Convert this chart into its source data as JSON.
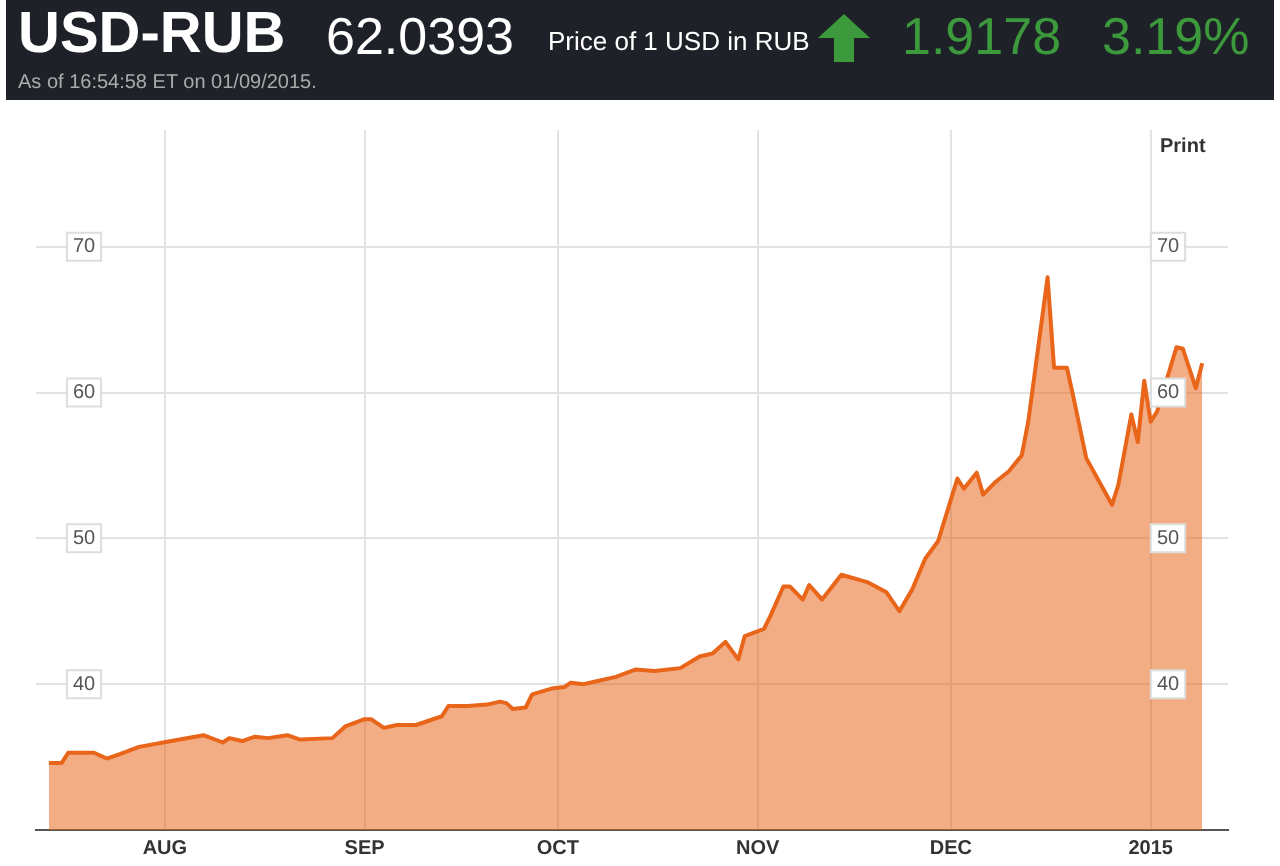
{
  "chart_data": {
    "type": "area",
    "title": "USD-RUB",
    "subtitle": "As of 16:54:58 ET on 01/09/2015.",
    "annotations": [
      "62.0393",
      "Price of 1 USD in RUB",
      "1.9178",
      "3.19%",
      "Print"
    ],
    "x": [
      "2014-07-14",
      "2014-07-16",
      "2014-07-17",
      "2014-07-21",
      "2014-07-23",
      "2014-07-25",
      "2014-07-28",
      "2014-08-02",
      "2014-08-07",
      "2014-08-10",
      "2014-08-11",
      "2014-08-13",
      "2014-08-15",
      "2014-08-17",
      "2014-08-20",
      "2014-08-22",
      "2014-08-27",
      "2014-08-29",
      "2014-09-01",
      "2014-09-02",
      "2014-09-04",
      "2014-09-06",
      "2014-09-09",
      "2014-09-13",
      "2014-09-14",
      "2014-09-17",
      "2014-09-20",
      "2014-09-22",
      "2014-09-23",
      "2014-09-24",
      "2014-09-26",
      "2014-09-27",
      "2014-09-30",
      "2014-10-02",
      "2014-10-03",
      "2014-10-05",
      "2014-10-07",
      "2014-10-10",
      "2014-10-13",
      "2014-10-16",
      "2014-10-20",
      "2014-10-23",
      "2014-10-25",
      "2014-10-27",
      "2014-10-29",
      "2014-10-30",
      "2014-11-02",
      "2014-11-03",
      "2014-11-05",
      "2014-11-06",
      "2014-11-08",
      "2014-11-09",
      "2014-11-11",
      "2014-11-14",
      "2014-11-18",
      "2014-11-21",
      "2014-11-23",
      "2014-11-25",
      "2014-11-27",
      "2014-11-29",
      "2014-12-02",
      "2014-12-03",
      "2014-12-05",
      "2014-12-06",
      "2014-12-08",
      "2014-12-10",
      "2014-12-12",
      "2014-12-13",
      "2014-12-16",
      "2014-12-17",
      "2014-12-19",
      "2014-12-20",
      "2014-12-22",
      "2014-12-24",
      "2014-12-26",
      "2014-12-27",
      "2014-12-29",
      "2014-12-30",
      "2014-12-31",
      "2015-01-01",
      "2015-01-02",
      "2015-01-05",
      "2015-01-06",
      "2015-01-08",
      "2015-01-09"
    ],
    "series": [
      {
        "color": "#e8651a",
        "values": [
          34.6,
          34.6,
          35.3,
          35.3,
          34.9,
          35.2,
          35.7,
          36.1,
          36.5,
          36.0,
          36.3,
          36.1,
          36.4,
          36.3,
          36.5,
          36.2,
          36.3,
          37.1,
          37.6,
          37.6,
          37.0,
          37.2,
          37.2,
          37.8,
          38.5,
          38.5,
          38.6,
          38.8,
          38.7,
          38.3,
          38.4,
          39.3,
          39.7,
          39.8,
          40.1,
          40.0,
          40.2,
          40.5,
          41.0,
          40.9,
          41.1,
          41.9,
          42.1,
          42.9,
          41.7,
          43.3,
          43.8,
          44.7,
          46.7,
          46.7,
          45.8,
          46.8,
          45.8,
          47.5,
          47.0,
          46.3,
          45.0,
          46.5,
          48.6,
          49.8,
          54.1,
          53.4,
          54.5,
          53.0,
          53.9,
          54.6,
          55.7,
          58.0,
          67.9,
          61.7,
          61.7,
          59.7,
          55.5,
          53.9,
          52.3,
          53.7,
          58.5,
          56.6,
          60.8,
          58.0,
          58.7,
          63.1,
          63.0,
          60.3,
          62.0
        ]
      }
    ],
    "xlim": [
      "2014-07-12",
      "2015-01-13"
    ],
    "xticks": [
      {
        "value": "2014-08-01",
        "label": "AUG"
      },
      {
        "value": "2014-09-01",
        "label": "SEP"
      },
      {
        "value": "2014-10-01",
        "label": "OCT"
      },
      {
        "value": "2014-11-01",
        "label": "NOV"
      },
      {
        "value": "2014-12-01",
        "label": "DEC"
      },
      {
        "value": "2015-01-01",
        "label": "2015"
      }
    ],
    "ylim": [
      30,
      78
    ],
    "yticks": [
      40,
      50,
      60,
      70
    ],
    "y2lim": [
      30,
      78
    ],
    "y2ticks": [
      40,
      50,
      60,
      70
    ],
    "grid": true,
    "legend": false
  }
}
